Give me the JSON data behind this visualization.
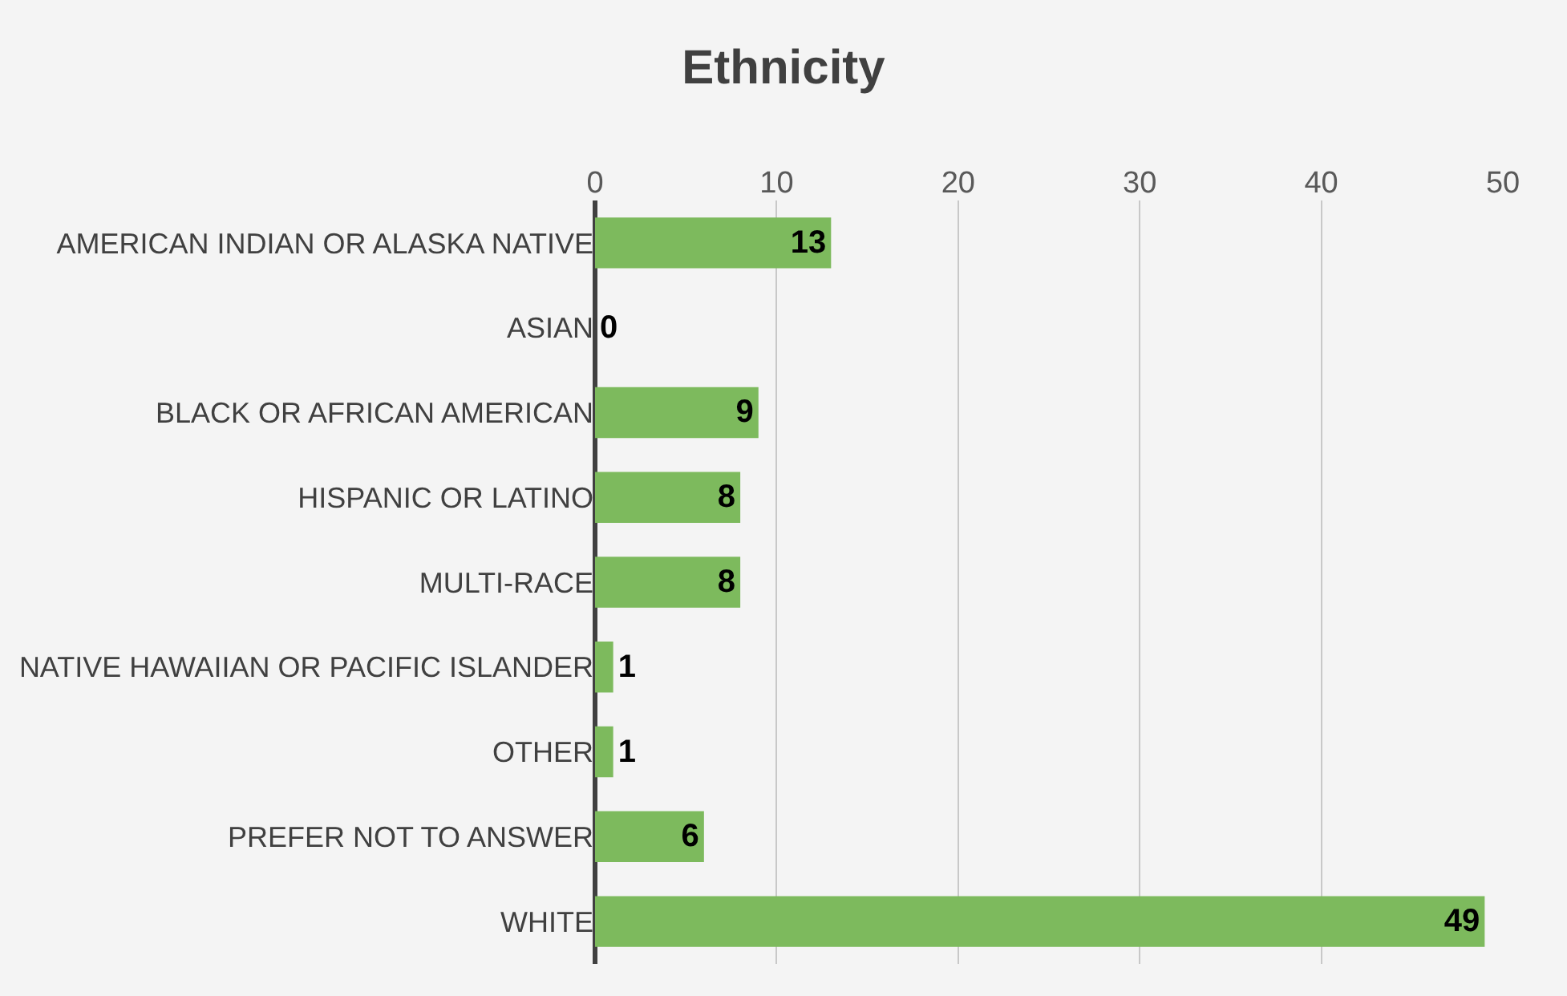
{
  "chart_data": {
    "type": "bar",
    "title": "Ethnicity",
    "orientation": "horizontal",
    "categories": [
      "AMERICAN INDIAN OR ALASKA NATIVE",
      "ASIAN",
      "BLACK OR AFRICAN AMERICAN",
      "HISPANIC OR LATINO",
      "MULTI-RACE",
      "NATIVE HAWAIIAN OR PACIFIC ISLANDER",
      "OTHER",
      "PREFER NOT TO ANSWER",
      "WHITE"
    ],
    "values": [
      13,
      0,
      9,
      8,
      8,
      1,
      1,
      6,
      49
    ],
    "color": "#7dba5d",
    "xlim": [
      0,
      50
    ],
    "xticks": [
      0,
      10,
      20,
      30,
      40,
      50
    ],
    "grid": "x",
    "data_labels": true,
    "legend": false
  }
}
